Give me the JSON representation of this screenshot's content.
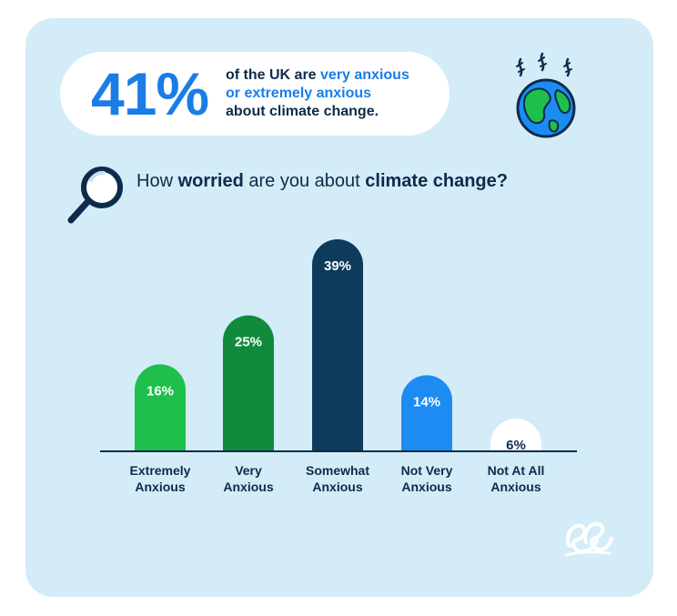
{
  "headline": {
    "percent": "41%",
    "line1": "of the UK are ",
    "line1_accent": "very anxious",
    "line2_accent": "or extremely anxious",
    "line3": "about climate change."
  },
  "question": {
    "part1": "How ",
    "bold1": "worried",
    "part2": " are you about ",
    "bold2": "climate change?"
  },
  "icons": {
    "globe": "globe-icon",
    "magnifier": "magnifier-icon",
    "logo": "brand-logo"
  },
  "chart_data": {
    "type": "bar",
    "categories": [
      [
        "Extremely",
        "Anxious"
      ],
      [
        "Very",
        "Anxious"
      ],
      [
        "Somewhat",
        "Anxious"
      ],
      [
        "Not Very",
        "Anxious"
      ],
      [
        "Not At All",
        "Anxious"
      ]
    ],
    "values": [
      16,
      25,
      39,
      14,
      6
    ],
    "labels": [
      "16%",
      "25%",
      "39%",
      "14%",
      "6%"
    ],
    "colors": [
      "#1fbf4c",
      "#128a3d",
      "#0e3a5c",
      "#1d8cf2",
      "#ffffff"
    ],
    "label_colors": [
      "#ffffff",
      "#ffffff",
      "#ffffff",
      "#ffffff",
      "#0d2b4a"
    ],
    "ylim": [
      0,
      39
    ],
    "grid": false
  }
}
